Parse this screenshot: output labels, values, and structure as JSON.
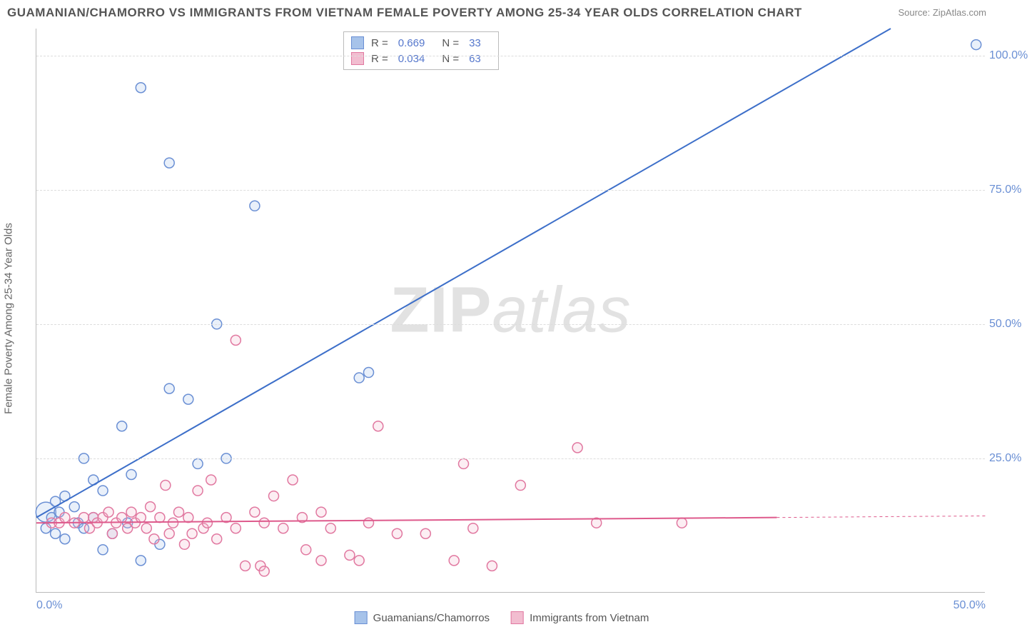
{
  "title": "GUAMANIAN/CHAMORRO VS IMMIGRANTS FROM VIETNAM FEMALE POVERTY AMONG 25-34 YEAR OLDS CORRELATION CHART",
  "source": "Source: ZipAtlas.com",
  "ylabel": "Female Poverty Among 25-34 Year Olds",
  "watermark_part1": "ZIP",
  "watermark_part2": "atlas",
  "chart": {
    "type": "scatter",
    "background_color": "#ffffff",
    "grid_color": "#dddddd",
    "axis_color": "#bbbbbb",
    "tick_color": "#6a8fd4",
    "xlim": [
      0,
      50
    ],
    "ylim": [
      0,
      105
    ],
    "yticks": [
      25,
      50,
      75,
      100
    ],
    "ytick_labels": [
      "25.0%",
      "50.0%",
      "75.0%",
      "100.0%"
    ],
    "xticks": [
      0,
      50
    ],
    "xtick_labels": [
      "0.0%",
      "50.0%"
    ],
    "marker_radius": 7,
    "marker_radius_large": 14,
    "marker_fill_opacity": 0.25,
    "marker_stroke_width": 1.5,
    "line_width": 2,
    "series": [
      {
        "name": "Guamanians/Chamorros",
        "color_fill": "#a7c3ea",
        "color_stroke": "#6a8fd4",
        "line_color": "#3d6fc9",
        "R": "0.669",
        "N": "33",
        "regression": {
          "x1": 0,
          "y1": 14,
          "x2": 45,
          "y2": 105
        },
        "points": [
          {
            "x": 0.5,
            "y": 15,
            "r": 14
          },
          {
            "x": 0.5,
            "y": 12
          },
          {
            "x": 0.8,
            "y": 14
          },
          {
            "x": 1.0,
            "y": 11
          },
          {
            "x": 1.0,
            "y": 17
          },
          {
            "x": 1.2,
            "y": 15
          },
          {
            "x": 1.5,
            "y": 10
          },
          {
            "x": 1.5,
            "y": 18
          },
          {
            "x": 2.0,
            "y": 16
          },
          {
            "x": 2.2,
            "y": 13
          },
          {
            "x": 2.5,
            "y": 12
          },
          {
            "x": 2.5,
            "y": 25
          },
          {
            "x": 3.0,
            "y": 14
          },
          {
            "x": 3.0,
            "y": 21
          },
          {
            "x": 3.5,
            "y": 19
          },
          {
            "x": 3.5,
            "y": 8
          },
          {
            "x": 4.0,
            "y": 11
          },
          {
            "x": 4.5,
            "y": 31
          },
          {
            "x": 4.8,
            "y": 13
          },
          {
            "x": 5.0,
            "y": 22
          },
          {
            "x": 5.5,
            "y": 6
          },
          {
            "x": 5.5,
            "y": 94
          },
          {
            "x": 6.5,
            "y": 9
          },
          {
            "x": 7.0,
            "y": 80
          },
          {
            "x": 7.0,
            "y": 38
          },
          {
            "x": 8.0,
            "y": 36
          },
          {
            "x": 8.5,
            "y": 24
          },
          {
            "x": 9.5,
            "y": 50
          },
          {
            "x": 10.0,
            "y": 25
          },
          {
            "x": 11.5,
            "y": 72
          },
          {
            "x": 17.0,
            "y": 40
          },
          {
            "x": 17.5,
            "y": 41
          },
          {
            "x": 49.5,
            "y": 102
          }
        ]
      },
      {
        "name": "Immigrants from Vietnam",
        "color_fill": "#f2bdd0",
        "color_stroke": "#e178a0",
        "line_color": "#de5a8c",
        "R": "0.034",
        "N": "63",
        "regression": {
          "x1": 0,
          "y1": 13,
          "x2": 39,
          "y2": 14
        },
        "regression_dashed": {
          "x1": 39,
          "y1": 14,
          "x2": 50,
          "y2": 14.3
        },
        "points": [
          {
            "x": 0.8,
            "y": 13
          },
          {
            "x": 1.2,
            "y": 13
          },
          {
            "x": 1.5,
            "y": 14
          },
          {
            "x": 2.0,
            "y": 13
          },
          {
            "x": 2.5,
            "y": 14
          },
          {
            "x": 2.8,
            "y": 12
          },
          {
            "x": 3.0,
            "y": 14
          },
          {
            "x": 3.2,
            "y": 13
          },
          {
            "x": 3.5,
            "y": 14
          },
          {
            "x": 3.8,
            "y": 15
          },
          {
            "x": 4.0,
            "y": 11
          },
          {
            "x": 4.2,
            "y": 13
          },
          {
            "x": 4.5,
            "y": 14
          },
          {
            "x": 4.8,
            "y": 12
          },
          {
            "x": 5.0,
            "y": 15
          },
          {
            "x": 5.2,
            "y": 13
          },
          {
            "x": 5.5,
            "y": 14
          },
          {
            "x": 5.8,
            "y": 12
          },
          {
            "x": 6.0,
            "y": 16
          },
          {
            "x": 6.2,
            "y": 10
          },
          {
            "x": 6.5,
            "y": 14
          },
          {
            "x": 6.8,
            "y": 20
          },
          {
            "x": 7.0,
            "y": 11
          },
          {
            "x": 7.2,
            "y": 13
          },
          {
            "x": 7.5,
            "y": 15
          },
          {
            "x": 7.8,
            "y": 9
          },
          {
            "x": 8.0,
            "y": 14
          },
          {
            "x": 8.2,
            "y": 11
          },
          {
            "x": 8.5,
            "y": 19
          },
          {
            "x": 8.8,
            "y": 12
          },
          {
            "x": 9.0,
            "y": 13
          },
          {
            "x": 9.2,
            "y": 21
          },
          {
            "x": 9.5,
            "y": 10
          },
          {
            "x": 10.0,
            "y": 14
          },
          {
            "x": 10.5,
            "y": 47
          },
          {
            "x": 10.5,
            "y": 12
          },
          {
            "x": 11.0,
            "y": 5
          },
          {
            "x": 11.5,
            "y": 15
          },
          {
            "x": 11.8,
            "y": 5
          },
          {
            "x": 12.0,
            "y": 13
          },
          {
            "x": 12.0,
            "y": 4
          },
          {
            "x": 12.5,
            "y": 18
          },
          {
            "x": 13.0,
            "y": 12
          },
          {
            "x": 13.5,
            "y": 21
          },
          {
            "x": 14.0,
            "y": 14
          },
          {
            "x": 14.2,
            "y": 8
          },
          {
            "x": 15.0,
            "y": 15
          },
          {
            "x": 15.0,
            "y": 6
          },
          {
            "x": 15.5,
            "y": 12
          },
          {
            "x": 16.5,
            "y": 7
          },
          {
            "x": 17.0,
            "y": 6
          },
          {
            "x": 17.5,
            "y": 13
          },
          {
            "x": 18.0,
            "y": 31
          },
          {
            "x": 19.0,
            "y": 11
          },
          {
            "x": 20.5,
            "y": 11
          },
          {
            "x": 22.0,
            "y": 6
          },
          {
            "x": 22.5,
            "y": 24
          },
          {
            "x": 23.0,
            "y": 12
          },
          {
            "x": 24.0,
            "y": 5
          },
          {
            "x": 25.5,
            "y": 20
          },
          {
            "x": 28.5,
            "y": 27
          },
          {
            "x": 29.5,
            "y": 13
          },
          {
            "x": 34.0,
            "y": 13
          }
        ]
      }
    ]
  },
  "stats_legend": {
    "R_label": "R =",
    "N_label": "N ="
  },
  "bottom_legend": {
    "items": [
      "Guamanians/Chamorros",
      "Immigrants from Vietnam"
    ]
  }
}
